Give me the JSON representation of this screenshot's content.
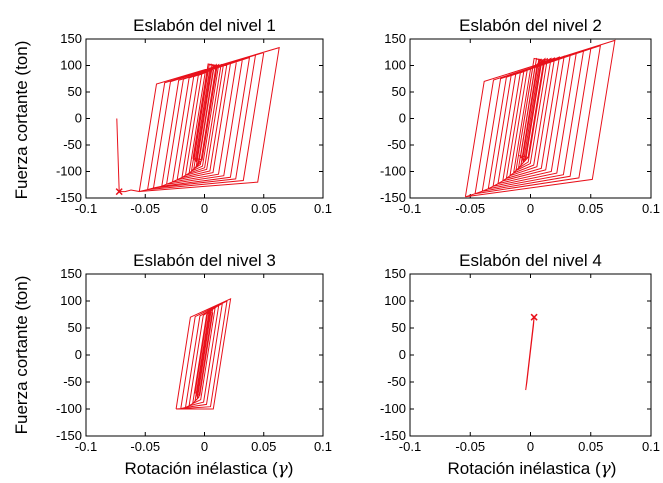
{
  "figure": {
    "ylabel": "Fuerza cortante (ton)",
    "xlabel_text": "Rotación inélastica (",
    "xlabel_symbol": "γ",
    "xlabel_close": ")"
  },
  "chart_data": [
    {
      "type": "line",
      "title": "Eslabón del nivel 1",
      "xlim": [
        -0.1,
        0.1
      ],
      "ylim": [
        -150,
        150
      ],
      "xticks": [
        -0.1,
        -0.05,
        0,
        0.05,
        0.1
      ],
      "xtick_labels": [
        "-0.1",
        "-0.05",
        "0",
        "0.05",
        "0.1"
      ],
      "yticks": [
        -150,
        -100,
        -50,
        0,
        50,
        100,
        150
      ],
      "ytick_labels": [
        "-150",
        "-100",
        "-50",
        "0",
        "50",
        "100",
        "150"
      ],
      "series_color": "#e8101a",
      "hysteresis": {
        "path": [
          [
            -0.074,
            0
          ],
          [
            -0.072,
            -138
          ],
          [
            -0.067,
            -138
          ],
          [
            -0.062,
            -135
          ]
        ],
        "loops_x_min": [
          -0.055,
          -0.048,
          -0.043,
          -0.036,
          -0.032,
          -0.027,
          -0.023,
          -0.019,
          -0.016,
          -0.013,
          -0.011,
          -0.009,
          -0.007,
          -0.005,
          -0.003,
          -0.002
        ],
        "loops_x_max": [
          0.063,
          0.05,
          0.043,
          0.038,
          0.032,
          0.027,
          0.022,
          0.019,
          0.016,
          0.014,
          0.012,
          0.01,
          0.008,
          0.006,
          0.004,
          0.003
        ],
        "elastic_slope": 14000,
        "upper_branch": [
          65,
          100
        ],
        "lower_branch": [
          -120,
          -75
        ],
        "peak_max": 135,
        "peak_min": -138,
        "hardening_span": 0.12
      }
    },
    {
      "type": "line",
      "title": "Eslabón del nivel 2",
      "xlim": [
        -0.1,
        0.1
      ],
      "ylim": [
        -150,
        150
      ],
      "xticks": [
        -0.1,
        -0.05,
        0,
        0.05,
        0.1
      ],
      "xtick_labels": [
        "-0.1",
        "-0.05",
        "0",
        "0.05",
        "0.1"
      ],
      "yticks": [
        -150,
        -100,
        -50,
        0,
        50,
        100,
        150
      ],
      "ytick_labels": [
        "-150",
        "-100",
        "-50",
        "0",
        "50",
        "100",
        "150"
      ],
      "series_color": "#e8101a",
      "hysteresis": {
        "path": [],
        "loops_x_min": [
          -0.054,
          -0.046,
          -0.04,
          -0.035,
          -0.031,
          -0.027,
          -0.023,
          -0.02,
          -0.017,
          -0.014,
          -0.012,
          -0.01,
          -0.008,
          -0.006,
          -0.004,
          -0.002
        ],
        "loops_x_max": [
          0.07,
          0.058,
          0.05,
          0.044,
          0.038,
          0.033,
          0.028,
          0.024,
          0.02,
          0.017,
          0.014,
          0.012,
          0.009,
          0.007,
          0.005,
          0.003
        ],
        "elastic_slope": 14000,
        "upper_branch": [
          70,
          110
        ],
        "lower_branch": [
          -115,
          -70
        ],
        "peak_max": 148,
        "peak_min": -148,
        "hardening_span": 0.125
      }
    },
    {
      "type": "line",
      "title": "Eslabón del nivel 3",
      "xlim": [
        -0.1,
        0.1
      ],
      "ylim": [
        -150,
        150
      ],
      "xticks": [
        -0.1,
        -0.05,
        0,
        0.05,
        0.1
      ],
      "xtick_labels": [
        "-0.1",
        "-0.05",
        "0",
        "0.05",
        "0.1"
      ],
      "yticks": [
        -150,
        -100,
        -50,
        0,
        50,
        100,
        150
      ],
      "ytick_labels": [
        "-150",
        "-100",
        "-50",
        "0",
        "50",
        "100",
        "150"
      ],
      "series_color": "#e8101a",
      "hysteresis": {
        "path": [],
        "loops_x_min": [
          -0.024,
          -0.02,
          -0.016,
          -0.013,
          -0.01,
          -0.008,
          -0.006,
          -0.004
        ],
        "loops_x_max": [
          0.022,
          0.019,
          0.015,
          0.012,
          0.009,
          0.007,
          0.005,
          0.003
        ],
        "elastic_slope": 14000,
        "upper_branch": [
          70,
          78
        ],
        "lower_branch": [
          -100,
          -70
        ],
        "peak_max": 104,
        "peak_min": -100,
        "hardening_span": 0.046
      }
    },
    {
      "type": "line",
      "title": "Eslabón del nivel 4",
      "xlim": [
        -0.1,
        0.1
      ],
      "ylim": [
        -150,
        150
      ],
      "xticks": [
        -0.1,
        -0.05,
        0,
        0.05,
        0.1
      ],
      "xtick_labels": [
        "-0.1",
        "-0.05",
        "0",
        "0.05",
        "0.1"
      ],
      "yticks": [
        -150,
        -100,
        -50,
        0,
        50,
        100,
        150
      ],
      "ytick_labels": [
        "-150",
        "-100",
        "-50",
        "0",
        "50",
        "100",
        "150"
      ],
      "series_color": "#e8101a",
      "hysteresis": {
        "path": [
          [
            -0.004,
            -65
          ],
          [
            0.003,
            70
          ],
          [
            0.0025,
            55
          ],
          [
            -0.003,
            -50
          ],
          [
            -0.004,
            -65
          ]
        ],
        "loops_x_min": [],
        "loops_x_max": [],
        "elastic_slope": 19000,
        "upper_branch": [
          0,
          0
        ],
        "lower_branch": [
          0,
          0
        ],
        "peak_max": 70,
        "peak_min": -65,
        "hardening_span": 0.01
      }
    }
  ]
}
